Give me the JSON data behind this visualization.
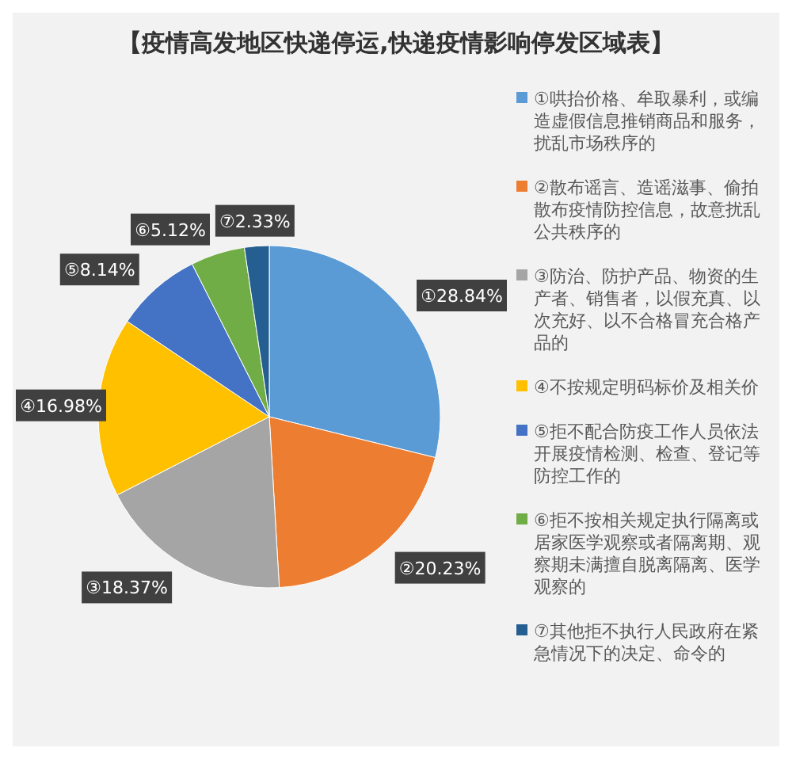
{
  "chart_data": {
    "type": "pie",
    "title": "【疫情高发地区快递停运,快递疫情影响停发区域表】",
    "categories": [
      "①哄抬价格、牟取暴利，或编造虚假信息推销商品和服务，扰乱市场秩序的",
      "②散布谣言、造谣滋事、偷拍散布疫情防控信息，故意扰乱公共秩序的",
      "③防治、防护产品、物资的生产者、销售者，以假充真、以次充好、以不合格冒充合格产品的",
      "④不按规定明码标价及相关价",
      "⑤拒不配合防疫工作人员依法开展疫情检测、检查、登记等防控工作的",
      "⑥拒不按相关规定执行隔离或居家医学观察或者隔离期、观察期未满擅自脱离隔离、医学观察的",
      "⑦其他拒不执行人民政府在紧急情况下的决定、命令的"
    ],
    "values": [
      28.84,
      20.23,
      18.37,
      16.98,
      8.14,
      5.12,
      2.33
    ],
    "value_labels": [
      "①28.84%",
      "②20.23%",
      "③18.37%",
      "④16.98%",
      "⑤8.14%",
      "⑥5.12%",
      "⑦2.33%"
    ],
    "colors": [
      "#5b9bd5",
      "#ed7d31",
      "#a5a5a5",
      "#ffc000",
      "#4472c4",
      "#70ad47",
      "#255e91"
    ],
    "legend": "right"
  }
}
